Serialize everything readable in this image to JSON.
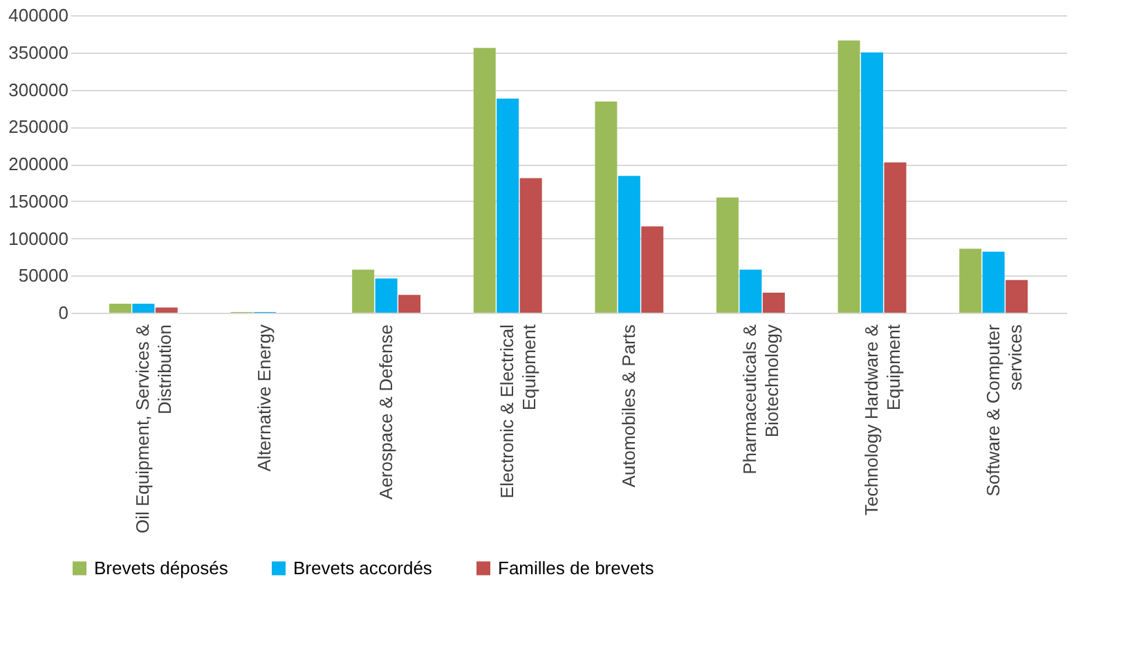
{
  "chart_data": {
    "type": "bar",
    "categories": [
      "Oil Equipment, Services & Distribution",
      "Alternative Energy",
      "Aerospace & Defense",
      "Electronic & Electrical Equipment",
      "Automobiles & Parts",
      "Pharmaceuticals & Biotechnology",
      "Technology Hardware & Equipment",
      "Software & Computer services"
    ],
    "series": [
      {
        "name": "Brevets déposés",
        "color": "#9bbb59",
        "values": [
          12000,
          1000,
          58000,
          356000,
          284000,
          155000,
          366000,
          86000
        ]
      },
      {
        "name": "Brevets accordés",
        "color": "#00b0f0",
        "values": [
          12000,
          1000,
          46000,
          288000,
          184000,
          58000,
          350000,
          82000
        ]
      },
      {
        "name": "Familles de brevets",
        "color": "#c0504d",
        "values": [
          7000,
          0,
          24000,
          181000,
          116000,
          27000,
          202000,
          44000
        ]
      }
    ],
    "ylim": [
      0,
      400000
    ],
    "yticks": [
      0,
      50000,
      100000,
      150000,
      200000,
      250000,
      300000,
      350000,
      400000
    ],
    "grid": "y",
    "legend": "bottom"
  }
}
